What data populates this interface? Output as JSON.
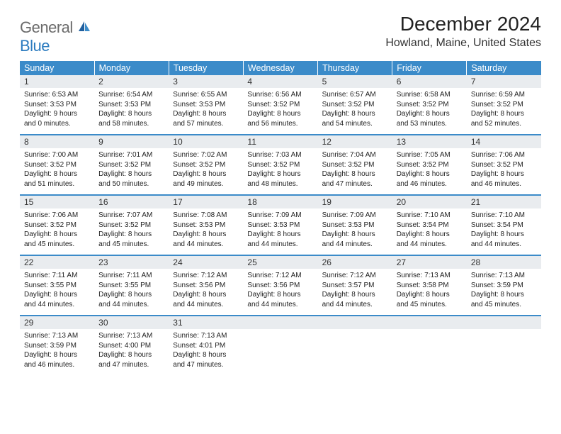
{
  "logo": {
    "line1": "General",
    "line2": "Blue",
    "icon_color": "#2b7bbf"
  },
  "title": "December 2024",
  "location": "Howland, Maine, United States",
  "colors": {
    "header_bg": "#3b8bc9",
    "header_text": "#ffffff",
    "daynum_bg": "#e9ecef",
    "border": "#3b8bc9",
    "text": "#222222",
    "logo_gray": "#6b6b6b",
    "logo_blue": "#2b7bbf",
    "page_bg": "#ffffff"
  },
  "typography": {
    "title_fontsize": 28,
    "location_fontsize": 16,
    "header_fontsize": 12.5,
    "daynum_fontsize": 12,
    "body_fontsize": 10
  },
  "day_headers": [
    "Sunday",
    "Monday",
    "Tuesday",
    "Wednesday",
    "Thursday",
    "Friday",
    "Saturday"
  ],
  "weeks": [
    [
      {
        "n": "1",
        "sunrise": "6:53 AM",
        "sunset": "3:53 PM",
        "dl1": "9 hours",
        "dl2": "0 minutes"
      },
      {
        "n": "2",
        "sunrise": "6:54 AM",
        "sunset": "3:53 PM",
        "dl1": "8 hours",
        "dl2": "58 minutes"
      },
      {
        "n": "3",
        "sunrise": "6:55 AM",
        "sunset": "3:53 PM",
        "dl1": "8 hours",
        "dl2": "57 minutes"
      },
      {
        "n": "4",
        "sunrise": "6:56 AM",
        "sunset": "3:52 PM",
        "dl1": "8 hours",
        "dl2": "56 minutes"
      },
      {
        "n": "5",
        "sunrise": "6:57 AM",
        "sunset": "3:52 PM",
        "dl1": "8 hours",
        "dl2": "54 minutes"
      },
      {
        "n": "6",
        "sunrise": "6:58 AM",
        "sunset": "3:52 PM",
        "dl1": "8 hours",
        "dl2": "53 minutes"
      },
      {
        "n": "7",
        "sunrise": "6:59 AM",
        "sunset": "3:52 PM",
        "dl1": "8 hours",
        "dl2": "52 minutes"
      }
    ],
    [
      {
        "n": "8",
        "sunrise": "7:00 AM",
        "sunset": "3:52 PM",
        "dl1": "8 hours",
        "dl2": "51 minutes"
      },
      {
        "n": "9",
        "sunrise": "7:01 AM",
        "sunset": "3:52 PM",
        "dl1": "8 hours",
        "dl2": "50 minutes"
      },
      {
        "n": "10",
        "sunrise": "7:02 AM",
        "sunset": "3:52 PM",
        "dl1": "8 hours",
        "dl2": "49 minutes"
      },
      {
        "n": "11",
        "sunrise": "7:03 AM",
        "sunset": "3:52 PM",
        "dl1": "8 hours",
        "dl2": "48 minutes"
      },
      {
        "n": "12",
        "sunrise": "7:04 AM",
        "sunset": "3:52 PM",
        "dl1": "8 hours",
        "dl2": "47 minutes"
      },
      {
        "n": "13",
        "sunrise": "7:05 AM",
        "sunset": "3:52 PM",
        "dl1": "8 hours",
        "dl2": "46 minutes"
      },
      {
        "n": "14",
        "sunrise": "7:06 AM",
        "sunset": "3:52 PM",
        "dl1": "8 hours",
        "dl2": "46 minutes"
      }
    ],
    [
      {
        "n": "15",
        "sunrise": "7:06 AM",
        "sunset": "3:52 PM",
        "dl1": "8 hours",
        "dl2": "45 minutes"
      },
      {
        "n": "16",
        "sunrise": "7:07 AM",
        "sunset": "3:52 PM",
        "dl1": "8 hours",
        "dl2": "45 minutes"
      },
      {
        "n": "17",
        "sunrise": "7:08 AM",
        "sunset": "3:53 PM",
        "dl1": "8 hours",
        "dl2": "44 minutes"
      },
      {
        "n": "18",
        "sunrise": "7:09 AM",
        "sunset": "3:53 PM",
        "dl1": "8 hours",
        "dl2": "44 minutes"
      },
      {
        "n": "19",
        "sunrise": "7:09 AM",
        "sunset": "3:53 PM",
        "dl1": "8 hours",
        "dl2": "44 minutes"
      },
      {
        "n": "20",
        "sunrise": "7:10 AM",
        "sunset": "3:54 PM",
        "dl1": "8 hours",
        "dl2": "44 minutes"
      },
      {
        "n": "21",
        "sunrise": "7:10 AM",
        "sunset": "3:54 PM",
        "dl1": "8 hours",
        "dl2": "44 minutes"
      }
    ],
    [
      {
        "n": "22",
        "sunrise": "7:11 AM",
        "sunset": "3:55 PM",
        "dl1": "8 hours",
        "dl2": "44 minutes"
      },
      {
        "n": "23",
        "sunrise": "7:11 AM",
        "sunset": "3:55 PM",
        "dl1": "8 hours",
        "dl2": "44 minutes"
      },
      {
        "n": "24",
        "sunrise": "7:12 AM",
        "sunset": "3:56 PM",
        "dl1": "8 hours",
        "dl2": "44 minutes"
      },
      {
        "n": "25",
        "sunrise": "7:12 AM",
        "sunset": "3:56 PM",
        "dl1": "8 hours",
        "dl2": "44 minutes"
      },
      {
        "n": "26",
        "sunrise": "7:12 AM",
        "sunset": "3:57 PM",
        "dl1": "8 hours",
        "dl2": "44 minutes"
      },
      {
        "n": "27",
        "sunrise": "7:13 AM",
        "sunset": "3:58 PM",
        "dl1": "8 hours",
        "dl2": "45 minutes"
      },
      {
        "n": "28",
        "sunrise": "7:13 AM",
        "sunset": "3:59 PM",
        "dl1": "8 hours",
        "dl2": "45 minutes"
      }
    ],
    [
      {
        "n": "29",
        "sunrise": "7:13 AM",
        "sunset": "3:59 PM",
        "dl1": "8 hours",
        "dl2": "46 minutes"
      },
      {
        "n": "30",
        "sunrise": "7:13 AM",
        "sunset": "4:00 PM",
        "dl1": "8 hours",
        "dl2": "47 minutes"
      },
      {
        "n": "31",
        "sunrise": "7:13 AM",
        "sunset": "4:01 PM",
        "dl1": "8 hours",
        "dl2": "47 minutes"
      },
      null,
      null,
      null,
      null
    ]
  ],
  "labels": {
    "sunrise_prefix": "Sunrise: ",
    "sunset_prefix": "Sunset: ",
    "daylight_prefix": "Daylight: ",
    "daylight_joiner": "and "
  }
}
